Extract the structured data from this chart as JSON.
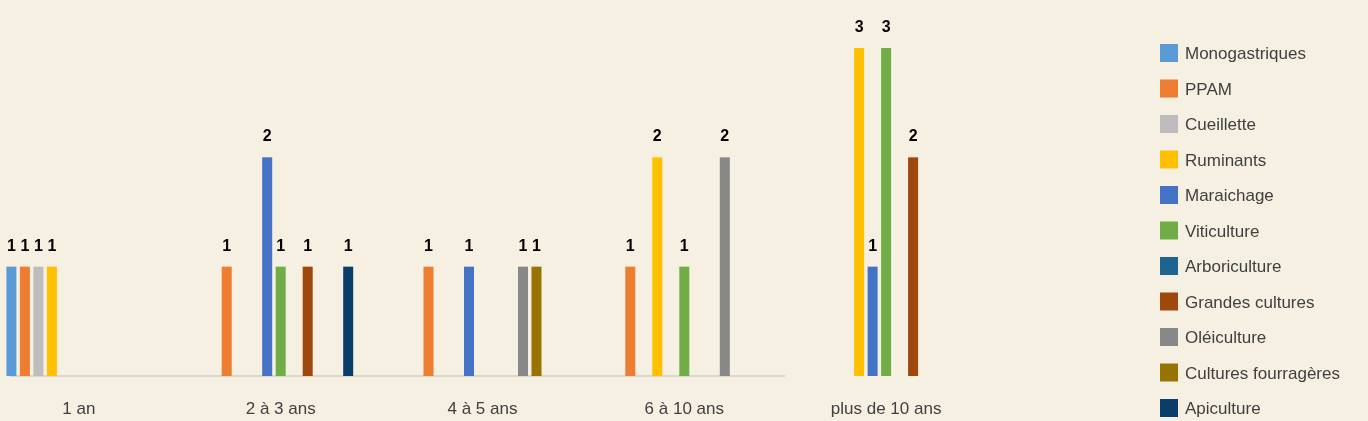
{
  "chart_data": {
    "type": "bar",
    "categories": [
      "1 an",
      "2 à 3 ans",
      "4 à 5 ans",
      "6 à 10 ans",
      "plus de 10 ans"
    ],
    "data_labels": true,
    "legend": "right",
    "series": [
      {
        "name": "Monogastriques",
        "color": "#5b9bd5",
        "values": [
          1,
          null,
          null,
          null,
          null
        ]
      },
      {
        "name": "PPAM",
        "color": "#ed7d31",
        "values": [
          1,
          1,
          1,
          1,
          null
        ]
      },
      {
        "name": "Cueillette",
        "color": "#bdbdbd",
        "values": [
          1,
          null,
          null,
          null,
          null
        ]
      },
      {
        "name": "Ruminants",
        "color": "#ffc000",
        "values": [
          1,
          null,
          null,
          2,
          3
        ]
      },
      {
        "name": "Maraichage",
        "color": "#4472c4",
        "values": [
          null,
          2,
          1,
          null,
          1
        ]
      },
      {
        "name": "Viticulture",
        "color": "#70ad47",
        "values": [
          null,
          1,
          null,
          1,
          3
        ]
      },
      {
        "name": "Arboriculture",
        "color": "#1f6391",
        "values": [
          null,
          null,
          null,
          null,
          null
        ]
      },
      {
        "name": "Grandes cultures",
        "color": "#9e480e",
        "values": [
          null,
          1,
          null,
          null,
          2
        ]
      },
      {
        "name": "Oléiculture",
        "color": "#878787",
        "values": [
          null,
          null,
          1,
          2,
          null
        ]
      },
      {
        "name": "Cultures fourragères",
        "color": "#997300",
        "values": [
          null,
          null,
          1,
          null,
          null
        ]
      },
      {
        "name": "Apiculture",
        "color": "#0b3d6b",
        "values": [
          null,
          1,
          null,
          null,
          null
        ]
      }
    ]
  }
}
